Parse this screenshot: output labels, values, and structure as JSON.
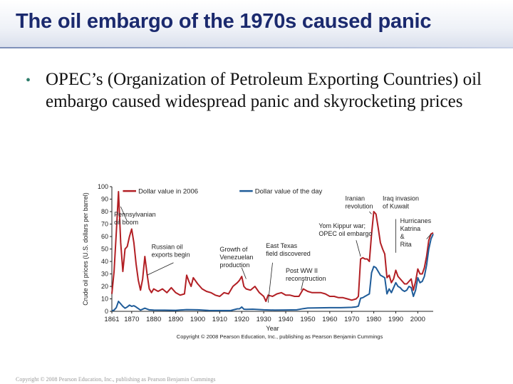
{
  "slide": {
    "title": "The oil embargo of the 1970s caused panic",
    "bullet": "OPEC’s (Organization of Petroleum Exporting Countries) oil embargo caused widespread panic and skyrocketing prices",
    "footer": "Copyright © 2008 Pearson Education, Inc., publishing as Pearson Benjamin Cummings"
  },
  "chart_data": {
    "type": "line",
    "xlabel": "Year",
    "ylabel": "Crude oil prices (U.S. dollars per barrel)",
    "xlim": [
      1861,
      2007
    ],
    "ylim": [
      0,
      100
    ],
    "xticks": [
      1861,
      1870,
      1880,
      1890,
      1900,
      1910,
      1920,
      1930,
      1940,
      1950,
      1960,
      1970,
      1980,
      1990,
      2000
    ],
    "yticks": [
      0,
      10,
      20,
      30,
      40,
      50,
      60,
      70,
      80,
      90,
      100
    ],
    "grid": false,
    "legend_position": "top",
    "credit": "Copyright © 2008 Pearson Education, Inc., publishing as Pearson Benjamin Cummings",
    "series": [
      {
        "name": "Dollar value in 2006",
        "color": "#b21f24",
        "x": [
          1861,
          1862,
          1863,
          1864,
          1865,
          1866,
          1867,
          1868,
          1869,
          1870,
          1871,
          1872,
          1873,
          1874,
          1875,
          1876,
          1877,
          1878,
          1879,
          1880,
          1882,
          1884,
          1886,
          1888,
          1890,
          1892,
          1894,
          1895,
          1896,
          1897,
          1898,
          1900,
          1902,
          1904,
          1906,
          1908,
          1910,
          1912,
          1914,
          1916,
          1918,
          1919,
          1920,
          1921,
          1922,
          1924,
          1926,
          1928,
          1930,
          1931,
          1932,
          1934,
          1936,
          1938,
          1940,
          1942,
          1944,
          1946,
          1948,
          1950,
          1952,
          1954,
          1956,
          1958,
          1960,
          1962,
          1964,
          1966,
          1968,
          1970,
          1972,
          1973,
          1974,
          1975,
          1976,
          1977,
          1978,
          1979,
          1980,
          1981,
          1982,
          1983,
          1984,
          1985,
          1986,
          1987,
          1988,
          1989,
          1990,
          1991,
          1992,
          1993,
          1994,
          1995,
          1996,
          1997,
          1998,
          1999,
          2000,
          2001,
          2002,
          2003,
          2004,
          2005,
          2006,
          2007
        ],
        "values": [
          14,
          32,
          63,
          96,
          55,
          32,
          50,
          52,
          60,
          66,
          55,
          38,
          25,
          17,
          26,
          44,
          30,
          18,
          15,
          18,
          16,
          18,
          15,
          19,
          15,
          13,
          14,
          29,
          24,
          20,
          27,
          22,
          18,
          16,
          15,
          13,
          12,
          15,
          14,
          20,
          23,
          25,
          28,
          20,
          18,
          17,
          20,
          15,
          12,
          8,
          13,
          12,
          14,
          15,
          13,
          13,
          12,
          12,
          18,
          16,
          15,
          15,
          15,
          14,
          12,
          12,
          11,
          11,
          10,
          9,
          10,
          12,
          42,
          43,
          42,
          42,
          40,
          62,
          80,
          78,
          67,
          55,
          50,
          46,
          27,
          29,
          23,
          26,
          33,
          28,
          26,
          24,
          22,
          22,
          24,
          26,
          17,
          24,
          34,
          30,
          30,
          35,
          44,
          57,
          62,
          63
        ]
      },
      {
        "name": "Dollar value of the day",
        "color": "#1f5c99",
        "x": [
          1861,
          1862,
          1863,
          1864,
          1865,
          1866,
          1867,
          1868,
          1869,
          1870,
          1871,
          1872,
          1874,
          1876,
          1878,
          1880,
          1885,
          1890,
          1895,
          1900,
          1905,
          1910,
          1915,
          1918,
          1919,
          1920,
          1921,
          1922,
          1925,
          1930,
          1935,
          1940,
          1945,
          1948,
          1950,
          1955,
          1960,
          1965,
          1970,
          1972,
          1973,
          1974,
          1975,
          1976,
          1977,
          1978,
          1979,
          1980,
          1981,
          1982,
          1983,
          1984,
          1985,
          1986,
          1987,
          1988,
          1989,
          1990,
          1991,
          1992,
          1993,
          1994,
          1995,
          1996,
          1997,
          1998,
          1999,
          2000,
          2001,
          2002,
          2003,
          2004,
          2005,
          2006,
          2007
        ],
        "values": [
          0.5,
          1,
          3,
          8,
          6,
          4,
          2.5,
          3.5,
          5,
          4,
          4.5,
          3.5,
          1,
          2.5,
          1.2,
          1,
          0.9,
          0.8,
          1.4,
          1.2,
          0.7,
          0.6,
          0.6,
          2,
          2,
          3.5,
          1.7,
          1.6,
          1.7,
          1.2,
          1,
          1.1,
          1.2,
          2.2,
          2.6,
          2.8,
          2.9,
          2.9,
          3.2,
          3.6,
          4.2,
          10.5,
          11,
          12,
          13,
          14,
          31,
          36,
          35,
          32,
          29,
          28,
          27,
          14,
          18,
          15,
          19,
          23,
          20,
          19,
          17,
          16,
          17,
          20,
          19,
          12,
          17,
          27,
          23,
          24,
          28,
          37,
          50,
          58,
          62
        ]
      }
    ],
    "annotations": [
      {
        "lines": [
          "Pennsylvanian",
          "oil boom"
        ],
        "x": 1862,
        "y": 76
      },
      {
        "lines": [
          "Russian oil",
          "exports begin"
        ],
        "x": 1879,
        "y": 50
      },
      {
        "lines": [
          "Growth of",
          "Venezuelan",
          "production"
        ],
        "x": 1910,
        "y": 48
      },
      {
        "lines": [
          "East Texas",
          "field discovered"
        ],
        "x": 1931,
        "y": 51
      },
      {
        "lines": [
          "Post WW II",
          "reconstruction"
        ],
        "x": 1940,
        "y": 31
      },
      {
        "lines": [
          "Yom Kippur war;",
          "OPEC oil embargo"
        ],
        "x": 1955,
        "y": 67
      },
      {
        "lines": [
          "Iranian",
          "revolution"
        ],
        "x": 1967,
        "y": 89
      },
      {
        "lines": [
          "Iraq invasion",
          "of Kuwait"
        ],
        "x": 1984,
        "y": 89
      },
      {
        "lines": [
          "Hurricanes",
          "Katrina",
          "&",
          "Rita"
        ],
        "x": 1992,
        "y": 71
      }
    ],
    "leaders": [
      [
        1868,
        72,
        1865,
        84
      ],
      [
        1889,
        39,
        1877,
        29
      ],
      [
        1922,
        26,
        1920,
        35
      ],
      [
        1934,
        39,
        1932,
        7
      ],
      [
        1948,
        25,
        1947,
        17
      ],
      [
        1972,
        57,
        1974,
        44
      ],
      [
        1978,
        80,
        1979,
        78
      ],
      [
        1990,
        74,
        1990,
        47
      ],
      [
        2004,
        58,
        2006,
        62
      ]
    ]
  }
}
